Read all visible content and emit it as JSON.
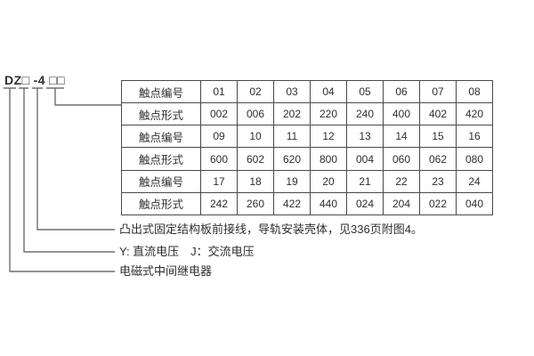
{
  "model_code": {
    "part1": "DZ□",
    "part2": "-4",
    "part3": "□□"
  },
  "table": {
    "rows": [
      {
        "label": "触点编号",
        "values": [
          "01",
          "02",
          "03",
          "04",
          "05",
          "06",
          "07",
          "08"
        ]
      },
      {
        "label": "触点形式",
        "values": [
          "002",
          "006",
          "202",
          "220",
          "240",
          "400",
          "402",
          "420"
        ]
      },
      {
        "label": "触点编号",
        "values": [
          "09",
          "10",
          "11",
          "12",
          "13",
          "14",
          "15",
          "16"
        ]
      },
      {
        "label": "触点形式",
        "values": [
          "600",
          "602",
          "620",
          "800",
          "004",
          "060",
          "062",
          "080"
        ]
      },
      {
        "label": "触点编号",
        "values": [
          "17",
          "18",
          "19",
          "20",
          "21",
          "22",
          "23",
          "24"
        ]
      },
      {
        "label": "触点形式",
        "values": [
          "242",
          "260",
          "422",
          "440",
          "024",
          "204",
          "022",
          "040"
        ]
      }
    ]
  },
  "annotations": [
    "凸出式固定结构板前接线，导轨安装壳体，见336页附图4。",
    "Y: 直流电压　J：交流电压",
    "电磁式中间继电器"
  ],
  "colors": {
    "background": "#ffffff",
    "text": "#2e2e2e",
    "connector_line": "#6e6e6e",
    "table_border": "#4a4a4a"
  }
}
